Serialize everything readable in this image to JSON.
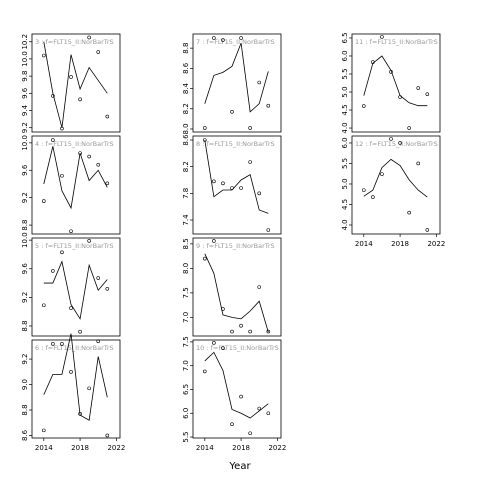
{
  "xlabel": "Year",
  "chart_data": [
    {
      "type": "line",
      "title": "3 : f=FLT15_II:NorBarTrS",
      "x": [
        2014,
        2015,
        2016,
        2017,
        2018,
        2019,
        2020,
        2021
      ],
      "line_values": [
        10.2,
        9.6,
        9.2,
        10.05,
        9.65,
        9.9,
        9.75,
        9.6
      ],
      "point_values": [
        10.04,
        9.57,
        9.19,
        9.79,
        9.53,
        10.25,
        10.08,
        9.33
      ],
      "color": "#000000",
      "xlim": [
        2012.7,
        2022.4
      ],
      "ylim": [
        9.15,
        10.29
      ],
      "yticks": [
        9.2,
        9.4,
        9.6,
        9.8,
        {
          "value": 10,
          "label": "10.0"
        },
        10.2
      ]
    },
    {
      "type": "line",
      "title": "4 : f=FLT15_II:NorBarTrS",
      "x": [
        2014,
        2015,
        2016,
        2017,
        2018,
        2019,
        2020,
        2021
      ],
      "line_values": [
        9.4,
        9.95,
        9.3,
        9.05,
        9.85,
        9.45,
        9.6,
        9.35
      ],
      "point_values": [
        9.15,
        10.04,
        9.52,
        8.71,
        9.85,
        9.8,
        9.68,
        9.41
      ],
      "color": "#000000",
      "xlim": [
        2012.7,
        2022.4
      ],
      "ylim": [
        8.67,
        10.1
      ],
      "yticks": [
        8.8,
        9.2,
        9.6,
        {
          "value": 10,
          "label": "10.0"
        }
      ]
    },
    {
      "type": "line",
      "title": "5 : f=FLT15_II:NorBarTrS",
      "x": [
        2014,
        2015,
        2016,
        2017,
        2018,
        2019,
        2020,
        2021
      ],
      "line_values": [
        9.4,
        9.4,
        9.7,
        9.1,
        8.9,
        9.65,
        9.3,
        9.45
      ],
      "point_values": [
        9.09,
        9.57,
        9.83,
        9.05,
        8.72,
        9.99,
        9.47,
        9.32
      ],
      "color": "#000000",
      "xlim": [
        2012.7,
        2022.4
      ],
      "ylim": [
        8.66,
        10.03
      ],
      "yticks": [
        8.8,
        9.2,
        9.6,
        {
          "value": 10,
          "label": "10.0"
        }
      ]
    },
    {
      "type": "line",
      "title": "6 : f=FLT15_II:NorBarTrS",
      "x": [
        2014,
        2015,
        2016,
        2017,
        2018,
        2019,
        2020,
        2021
      ],
      "line_values": [
        8.92,
        9.08,
        9.08,
        9.4,
        8.76,
        8.72,
        9.22,
        8.9
      ],
      "point_values": [
        8.64,
        9.32,
        9.32,
        9.1,
        8.77,
        8.97,
        9.34,
        8.6
      ],
      "color": "#000000",
      "xlim": [
        2012.7,
        2022.4
      ],
      "ylim": [
        8.58,
        9.35
      ],
      "yticks": [
        8.6,
        8.8,
        {
          "value": 9,
          "label": "9.0"
        },
        9.2
      ],
      "xticks": [
        2014,
        2018,
        2022
      ]
    },
    {
      "type": "line",
      "title": "7 : f=FLT15_II:NorBarTrS",
      "x": [
        2014,
        2015,
        2016,
        2017,
        2018,
        2019,
        2020,
        2021
      ],
      "line_values": [
        8.25,
        8.53,
        8.56,
        8.62,
        8.85,
        8.17,
        8.25,
        8.57
      ],
      "point_values": [
        8.01,
        8.9,
        8.88,
        8.17,
        8.9,
        8.01,
        8.46,
        8.23
      ],
      "color": "#000000",
      "xlim": [
        2012.7,
        2022.4
      ],
      "ylim": [
        7.97,
        8.94
      ],
      "yticks": [
        {
          "value": 8,
          "label": "8.0"
        },
        8.2,
        8.4,
        8.6,
        8.8
      ]
    },
    {
      "type": "line",
      "title": "8 : f=FLT15_II:NorBarTrS",
      "x": [
        2014,
        2015,
        2016,
        2017,
        2018,
        2019,
        2020,
        2021
      ],
      "line_values": [
        8.6,
        7.75,
        7.85,
        7.85,
        8.0,
        8.08,
        7.55,
        7.5
      ],
      "point_values": [
        8.6,
        7.98,
        7.95,
        7.88,
        7.88,
        8.27,
        7.8,
        7.25
      ],
      "color": "#000000",
      "xlim": [
        2012.7,
        2022.4
      ],
      "ylim": [
        7.19,
        8.66
      ],
      "yticks": [
        7.4,
        7.8,
        8.2,
        8.6
      ]
    },
    {
      "type": "line",
      "title": "9 : f=FLT15_II:NorBarTrS",
      "x": [
        2014,
        2015,
        2016,
        2017,
        2018,
        2019,
        2020,
        2021
      ],
      "line_values": [
        8.3,
        7.9,
        7.05,
        7.0,
        6.97,
        7.13,
        7.33,
        6.7
      ],
      "point_values": [
        8.2,
        8.56,
        7.17,
        6.71,
        6.83,
        6.71,
        7.62,
        6.71
      ],
      "color": "#000000",
      "xlim": [
        2012.7,
        2022.4
      ],
      "ylim": [
        6.62,
        8.62
      ],
      "yticks": [
        {
          "value": 7,
          "label": "7.0"
        },
        7.5,
        {
          "value": 8,
          "label": "8.0"
        },
        8.5
      ]
    },
    {
      "type": "line",
      "title": "10 : f=FLT15_II:NorBarTrS",
      "x": [
        2014,
        2015,
        2016,
        2017,
        2018,
        2019,
        2020,
        2021
      ],
      "line_values": [
        7.1,
        7.28,
        6.9,
        6.08,
        6.0,
        5.9,
        6.05,
        6.2
      ],
      "point_values": [
        6.88,
        7.48,
        7.37,
        5.77,
        6.35,
        5.58,
        6.1,
        6.0
      ],
      "color": "#000000",
      "xlim": [
        2012.7,
        2022.4
      ],
      "ylim": [
        5.48,
        7.54
      ],
      "yticks": [
        5.5,
        {
          "value": 6,
          "label": "6.0"
        },
        6.5,
        {
          "value": 7,
          "label": "7.0"
        },
        7.5
      ],
      "xticks": [
        2014,
        2018,
        2022
      ]
    },
    {
      "type": "line",
      "title": "11 : f=FLT15_II:NorBarTrS",
      "x": [
        2014,
        2015,
        2016,
        2017,
        2018,
        2019,
        2020,
        2021
      ],
      "line_values": [
        4.9,
        5.8,
        6.0,
        5.6,
        4.9,
        4.7,
        4.62,
        4.62
      ],
      "point_values": [
        4.61,
        5.83,
        6.53,
        5.56,
        4.86,
        4.0,
        5.11,
        4.94
      ],
      "color": "#000000",
      "xlim": [
        2012.7,
        2022.4
      ],
      "ylim": [
        3.89,
        6.61
      ],
      "yticks": [
        {
          "value": 4,
          "label": "4.0"
        },
        4.5,
        {
          "value": 5,
          "label": "5.0"
        },
        5.5,
        {
          "value": 6,
          "label": "6.0"
        },
        6.5
      ]
    },
    {
      "type": "line",
      "title": "12 : f=FLT15_II:NorBarTrS",
      "x": [
        2014,
        2015,
        2016,
        2017,
        2018,
        2019,
        2020,
        2021
      ],
      "line_values": [
        4.7,
        4.85,
        5.4,
        5.6,
        5.45,
        5.1,
        4.85,
        4.68
      ],
      "point_values": [
        4.85,
        4.68,
        5.24,
        6.1,
        6.0,
        4.3,
        5.5,
        3.88
      ],
      "color": "#000000",
      "xlim": [
        2012.7,
        2022.4
      ],
      "ylim": [
        3.78,
        6.17
      ],
      "yticks": [
        {
          "value": 4,
          "label": "4.0"
        },
        4.5,
        {
          "value": 5,
          "label": "5.0"
        },
        5.5,
        {
          "value": 6,
          "label": "6.0"
        }
      ],
      "xticks": [
        2014,
        2018,
        2022
      ]
    }
  ]
}
